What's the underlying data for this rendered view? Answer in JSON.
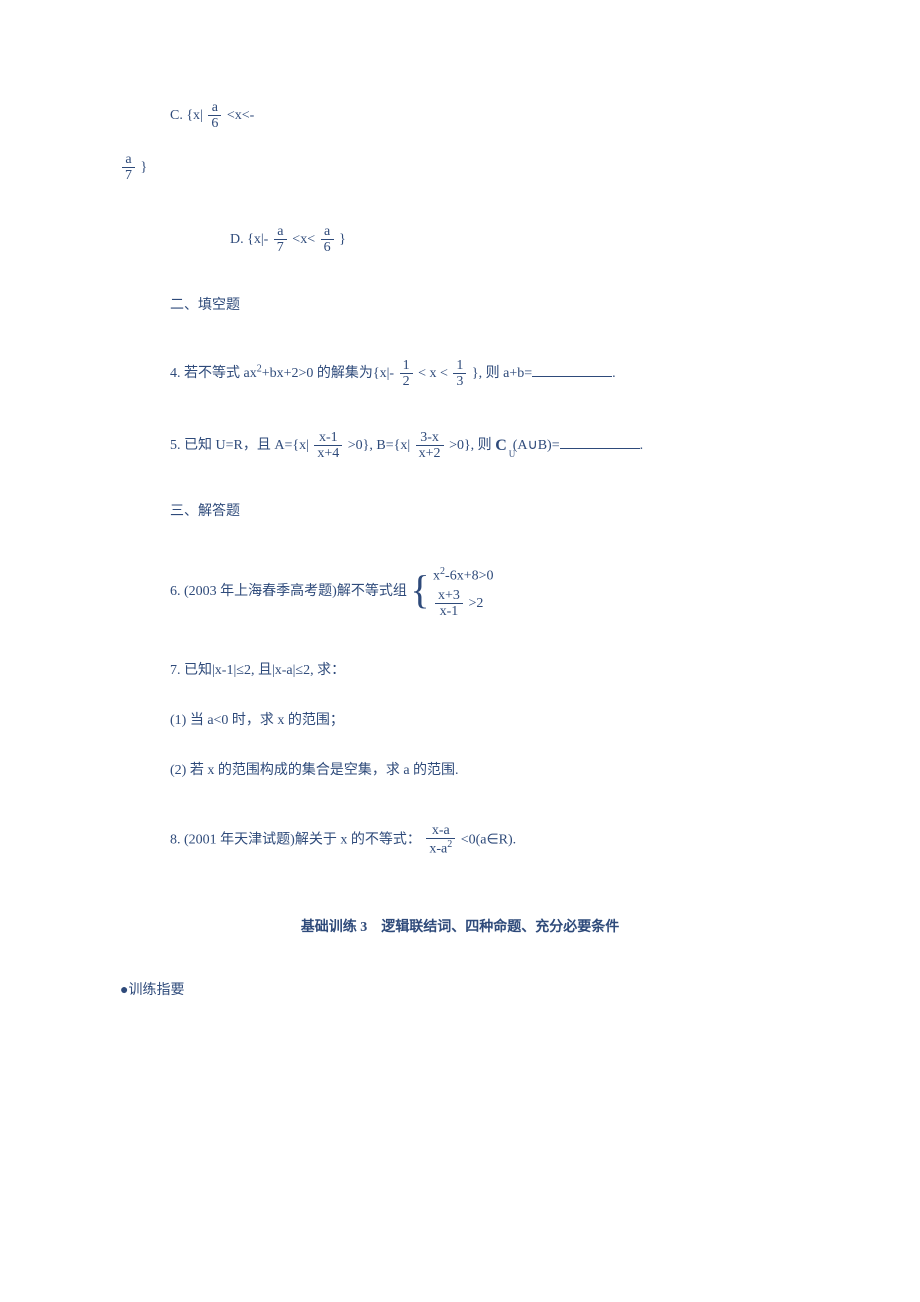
{
  "color_text": "#2e4a7a",
  "font_family": "SimSun",
  "base_fontsize": 14,
  "option_c": {
    "label": "C. {x|",
    "frac_num": "a",
    "frac_den": "6",
    "mid": "<x<-"
  },
  "option_c_tail": {
    "frac_num": "a",
    "frac_den": "7",
    "close": "}"
  },
  "option_d": {
    "label": "D. {x|-",
    "frac1_num": "a",
    "frac1_den": "7",
    "mid": "<x<",
    "frac2_num": "a",
    "frac2_den": "6",
    "close": "}"
  },
  "sec2": "二、填空题",
  "q4": {
    "pre": "4. 若不等式 ax",
    "sup": "2",
    "post_sup": "+bx+2>0 的解集为{x|-",
    "lhs_num": "1",
    "lhs_den": "2",
    "op": "< x <",
    "rhs_num": "1",
    "rhs_den": "3",
    "after": "}, 则 a+b=",
    "tail": "."
  },
  "q5": {
    "pre": "5. 已知 U=R，且 A={x|",
    "f1_num": "x-1",
    "f1_den": "x+4",
    "mid1": ">0}, B={x|",
    "f2_num": "3-x",
    "f2_den": "x+2",
    "mid2": ">0}, 则",
    "comp_main": "C",
    "comp_sub": "U",
    "after_comp": "(A∪B)=",
    "tail": "."
  },
  "sec3": "三、解答题",
  "q6": {
    "pre": "6. (2003 年上海春季高考题)解不等式组",
    "row1_pre": "x",
    "row1_sup": "2",
    "row1_post": "-6x+8>0",
    "row2_num": "x+3",
    "row2_den": "x-1",
    "row2_op": ">2"
  },
  "q7": {
    "main": "7. 已知|x-1|≤2, 且|x-a|≤2, 求：",
    "p1": "(1) 当 a<0 时，求 x 的范围；",
    "p2": "(2) 若 x 的范围构成的集合是空集，求 a 的范围."
  },
  "q8": {
    "pre": "8. (2001 年天津试题)解关于 x 的不等式：",
    "f_num": "x-a",
    "f_den_pre": "x-a",
    "f_den_sup": "2",
    "after": "<0(a∈R)."
  },
  "section_title": "基础训练 3　逻辑联结词、四种命题、充分必要条件",
  "bullet": "●训练指要"
}
